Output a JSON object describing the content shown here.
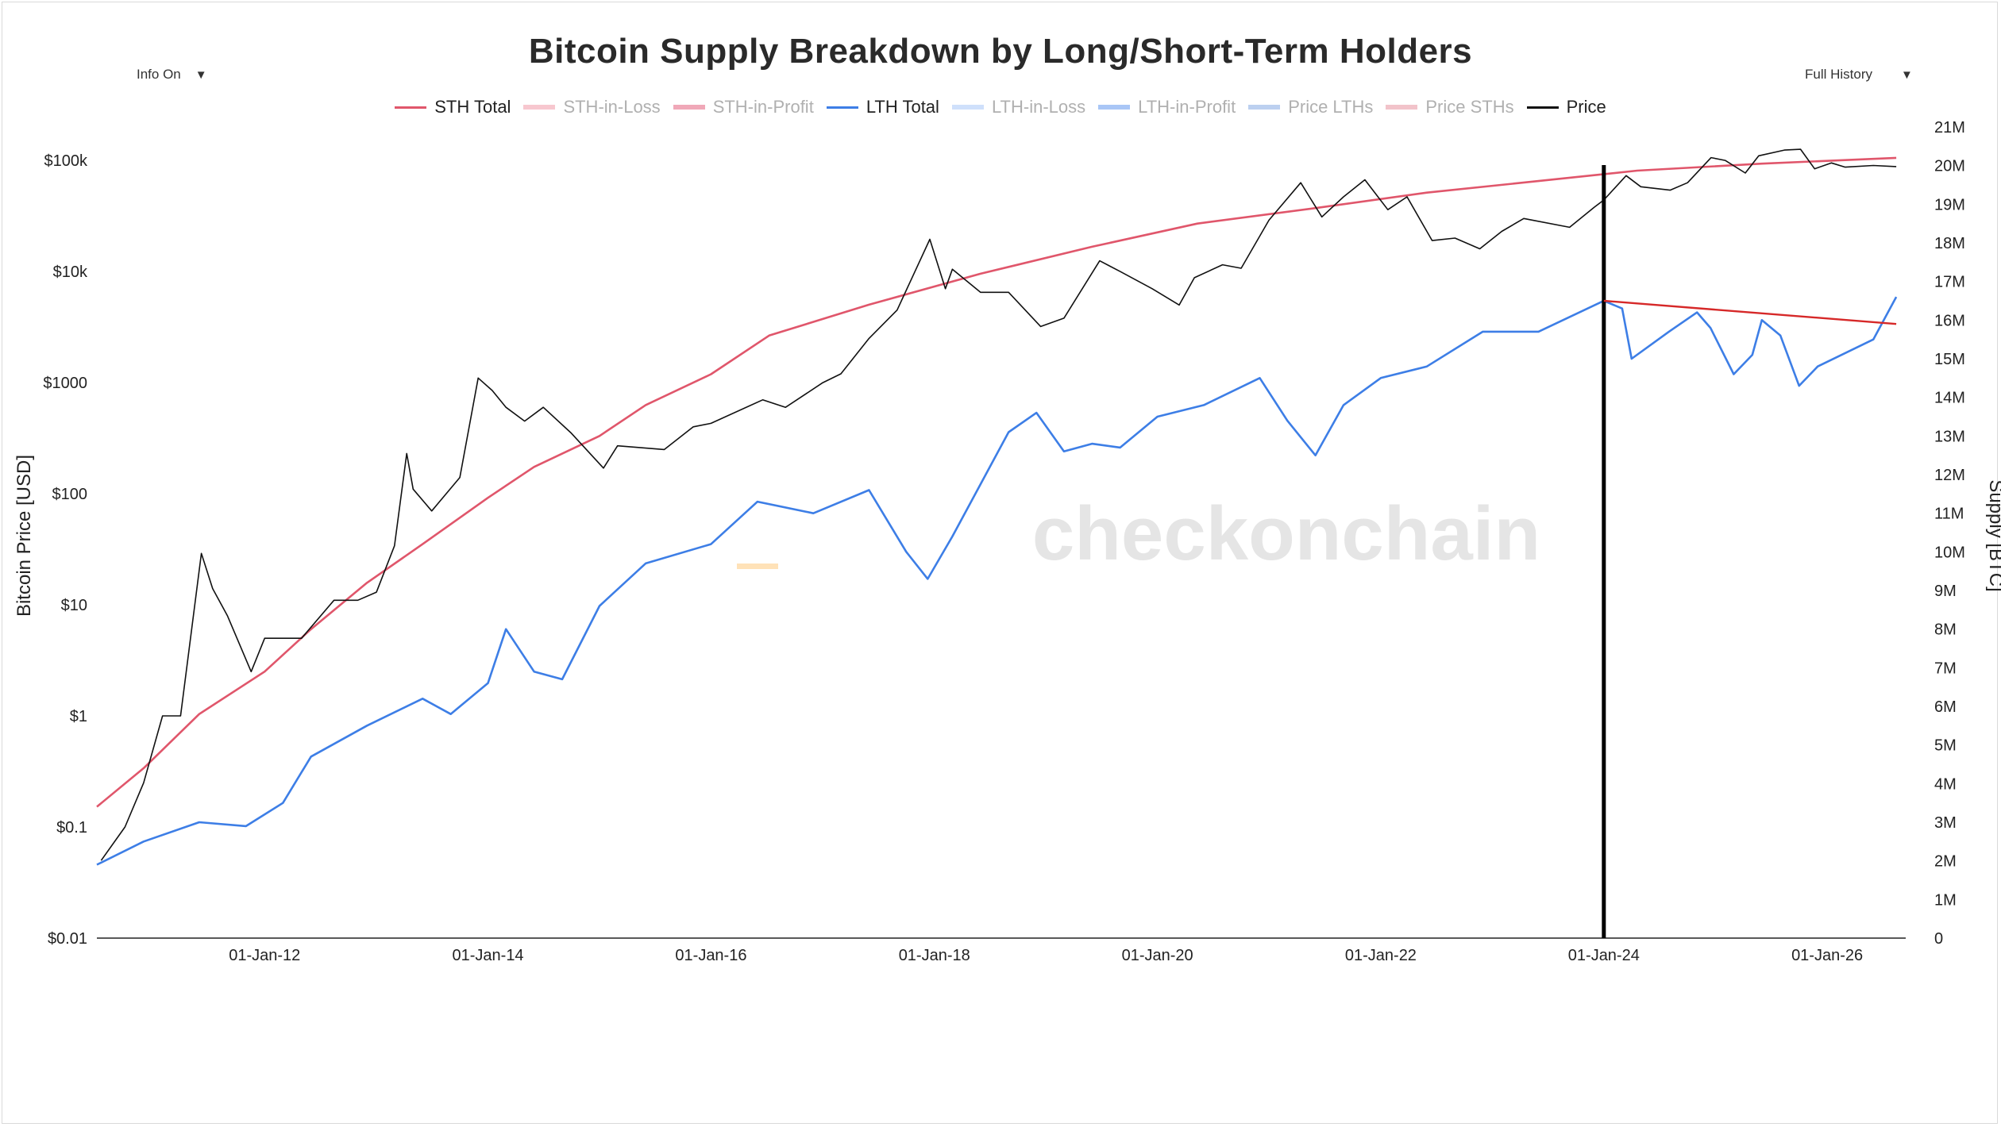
{
  "controls": {
    "info_toggle": "Info On",
    "history_select": "Full History"
  },
  "watermark": "checkonchain",
  "chart_data": {
    "type": "line",
    "title": "Bitcoin Supply Breakdown by Long/Short-Term Holders",
    "xlabel": "",
    "ylabel_left": "Bitcoin Price [USD]",
    "ylabel_right": "Supply [BTC]",
    "y_left_scale": "log",
    "y_left_range": [
      0.01,
      200000
    ],
    "y_right_range": [
      0,
      21000000
    ],
    "x_range": [
      "2010-07-01",
      "2026-09-15"
    ],
    "x_ticks": [
      "01-Jan-12",
      "01-Jan-14",
      "01-Jan-16",
      "01-Jan-18",
      "01-Jan-20",
      "01-Jan-22",
      "01-Jan-24",
      "01-Jan-26"
    ],
    "y_left_ticks": [
      "$0.01",
      "$0.1",
      "$1",
      "$10",
      "$100",
      "$1000",
      "$10k",
      "$100k"
    ],
    "y_right_ticks": [
      "0",
      "1M",
      "2M",
      "3M",
      "4M",
      "5M",
      "6M",
      "7M",
      "8M",
      "9M",
      "10M",
      "11M",
      "12M",
      "13M",
      "14M",
      "15M",
      "16M",
      "17M",
      "18M",
      "19M",
      "20M",
      "21M"
    ],
    "grid": false,
    "legend_position": "top-center",
    "legend": [
      {
        "name": "STH Total",
        "color": "#e0566b",
        "active": true
      },
      {
        "name": "STH-in-Loss",
        "color": "#f7c7cf",
        "active": false
      },
      {
        "name": "STH-in-Profit",
        "color": "#f0a8b8",
        "active": false
      },
      {
        "name": "LTH Total",
        "color": "#3d7ee6",
        "active": true
      },
      {
        "name": "LTH-in-Loss",
        "color": "#cfe0fb",
        "active": false
      },
      {
        "name": "LTH-in-Profit",
        "color": "#a9c6f6",
        "active": false
      },
      {
        "name": "Price LTHs",
        "color": "#bcd0f0",
        "active": false
      },
      {
        "name": "Price STHs",
        "color": "#f2c3ca",
        "active": false
      },
      {
        "name": "Price",
        "color": "#111111",
        "active": true
      }
    ],
    "annotations": {
      "vertical_marker_date": "2024-01-01",
      "trendline": {
        "from": [
          "2024-01-01",
          16500000
        ],
        "to": [
          "2026-08-15",
          15900000
        ],
        "color": "#d62828"
      }
    },
    "series": [
      {
        "name": "Price",
        "axis": "left",
        "color": "#111111",
        "points": [
          [
            "2010-07-15",
            0.05
          ],
          [
            "2010-10-01",
            0.1
          ],
          [
            "2010-12-01",
            0.25
          ],
          [
            "2011-02-01",
            1.0
          ],
          [
            "2011-04-01",
            1.0
          ],
          [
            "2011-06-08",
            29
          ],
          [
            "2011-07-15",
            14
          ],
          [
            "2011-09-01",
            8
          ],
          [
            "2011-11-18",
            2.5
          ],
          [
            "2012-01-01",
            5
          ],
          [
            "2012-05-01",
            5
          ],
          [
            "2012-08-15",
            11
          ],
          [
            "2012-11-01",
            11
          ],
          [
            "2013-01-01",
            13
          ],
          [
            "2013-03-01",
            34
          ],
          [
            "2013-04-10",
            230
          ],
          [
            "2013-05-01",
            110
          ],
          [
            "2013-07-01",
            70
          ],
          [
            "2013-10-01",
            140
          ],
          [
            "2013-11-30",
            1100
          ],
          [
            "2014-01-15",
            850
          ],
          [
            "2014-03-01",
            600
          ],
          [
            "2014-05-01",
            450
          ],
          [
            "2014-07-01",
            600
          ],
          [
            "2014-10-01",
            350
          ],
          [
            "2015-01-14",
            170
          ],
          [
            "2015-03-01",
            270
          ],
          [
            "2015-08-01",
            250
          ],
          [
            "2015-11-04",
            400
          ],
          [
            "2016-01-01",
            430
          ],
          [
            "2016-06-18",
            700
          ],
          [
            "2016-09-01",
            600
          ],
          [
            "2017-01-01",
            1000
          ],
          [
            "2017-03-01",
            1200
          ],
          [
            "2017-06-01",
            2500
          ],
          [
            "2017-09-01",
            4500
          ],
          [
            "2017-12-17",
            19500
          ],
          [
            "2018-02-06",
            7000
          ],
          [
            "2018-03-01",
            10500
          ],
          [
            "2018-06-01",
            6500
          ],
          [
            "2018-09-01",
            6500
          ],
          [
            "2018-12-15",
            3200
          ],
          [
            "2019-03-01",
            3800
          ],
          [
            "2019-06-26",
            12500
          ],
          [
            "2019-09-01",
            10000
          ],
          [
            "2019-12-15",
            7000
          ],
          [
            "2020-03-12",
            5000
          ],
          [
            "2020-05-01",
            8800
          ],
          [
            "2020-08-01",
            11500
          ],
          [
            "2020-10-01",
            10700
          ],
          [
            "2020-12-31",
            29000
          ],
          [
            "2021-04-14",
            63000
          ],
          [
            "2021-06-22",
            31000
          ],
          [
            "2021-09-01",
            47000
          ],
          [
            "2021-11-10",
            67000
          ],
          [
            "2022-01-24",
            36000
          ],
          [
            "2022-03-28",
            47000
          ],
          [
            "2022-06-18",
            19000
          ],
          [
            "2022-09-01",
            20000
          ],
          [
            "2022-11-21",
            16000
          ],
          [
            "2023-02-01",
            23000
          ],
          [
            "2023-04-14",
            30000
          ],
          [
            "2023-09-11",
            25000
          ],
          [
            "2023-12-01",
            38000
          ],
          [
            "2024-01-01",
            44000
          ],
          [
            "2024-03-14",
            73000
          ],
          [
            "2024-05-01",
            58000
          ],
          [
            "2024-08-05",
            54000
          ],
          [
            "2024-10-01",
            63000
          ],
          [
            "2024-12-17",
            106000
          ],
          [
            "2025-02-01",
            100000
          ],
          [
            "2025-04-08",
            77000
          ],
          [
            "2025-05-22",
            110000
          ],
          [
            "2025-08-14",
            124000
          ],
          [
            "2025-10-06",
            126000
          ],
          [
            "2025-11-21",
            84000
          ],
          [
            "2026-01-15",
            95000
          ],
          [
            "2026-03-01",
            87000
          ],
          [
            "2026-06-01",
            90000
          ],
          [
            "2026-08-15",
            88000
          ]
        ]
      },
      {
        "name": "STH Total",
        "axis": "right",
        "color": "#e0566b",
        "points": [
          [
            "2010-07-01",
            3400000
          ],
          [
            "2010-12-01",
            4400000
          ],
          [
            "2011-06-01",
            5800000
          ],
          [
            "2012-01-01",
            6900000
          ],
          [
            "2012-06-01",
            8000000
          ],
          [
            "2012-12-01",
            9200000
          ],
          [
            "2013-06-01",
            10200000
          ],
          [
            "2014-01-01",
            11400000
          ],
          [
            "2014-06-01",
            12200000
          ],
          [
            "2015-01-01",
            13000000
          ],
          [
            "2015-06-01",
            13800000
          ],
          [
            "2016-01-01",
            14600000
          ],
          [
            "2016-07-09",
            15600000
          ],
          [
            "2017-06-01",
            16400000
          ],
          [
            "2018-06-01",
            17200000
          ],
          [
            "2019-06-01",
            17900000
          ],
          [
            "2020-05-11",
            18500000
          ],
          [
            "2021-06-01",
            18900000
          ],
          [
            "2022-06-01",
            19300000
          ],
          [
            "2023-06-01",
            19600000
          ],
          [
            "2024-04-19",
            19870000
          ],
          [
            "2025-06-01",
            20050000
          ],
          [
            "2026-08-15",
            20200000
          ]
        ]
      },
      {
        "name": "LTH Total",
        "axis": "right",
        "color": "#3d7ee6",
        "points": [
          [
            "2010-07-01",
            1900000
          ],
          [
            "2010-12-01",
            2500000
          ],
          [
            "2011-06-01",
            3000000
          ],
          [
            "2011-11-01",
            2900000
          ],
          [
            "2012-03-01",
            3500000
          ],
          [
            "2012-06-01",
            4700000
          ],
          [
            "2012-12-01",
            5500000
          ],
          [
            "2013-06-01",
            6200000
          ],
          [
            "2013-09-01",
            5800000
          ],
          [
            "2014-01-01",
            6600000
          ],
          [
            "2014-03-01",
            8000000
          ],
          [
            "2014-06-01",
            6900000
          ],
          [
            "2014-09-01",
            6700000
          ],
          [
            "2015-01-01",
            8600000
          ],
          [
            "2015-06-01",
            9700000
          ],
          [
            "2016-01-01",
            10200000
          ],
          [
            "2016-06-01",
            11300000
          ],
          [
            "2016-12-01",
            11000000
          ],
          [
            "2017-06-01",
            11600000
          ],
          [
            "2017-10-01",
            10000000
          ],
          [
            "2017-12-10",
            9300000
          ],
          [
            "2018-03-01",
            10400000
          ],
          [
            "2018-09-01",
            13100000
          ],
          [
            "2018-12-01",
            13600000
          ],
          [
            "2019-03-01",
            12600000
          ],
          [
            "2019-06-01",
            12800000
          ],
          [
            "2019-09-01",
            12700000
          ],
          [
            "2020-01-01",
            13500000
          ],
          [
            "2020-06-01",
            13800000
          ],
          [
            "2020-12-01",
            14500000
          ],
          [
            "2021-03-01",
            13400000
          ],
          [
            "2021-06-01",
            12500000
          ],
          [
            "2021-09-01",
            13800000
          ],
          [
            "2022-01-01",
            14500000
          ],
          [
            "2022-06-01",
            14800000
          ],
          [
            "2022-12-01",
            15700000
          ],
          [
            "2023-06-01",
            15700000
          ],
          [
            "2024-01-01",
            16500000
          ],
          [
            "2024-03-01",
            16300000
          ],
          [
            "2024-04-01",
            15000000
          ],
          [
            "2024-08-01",
            15700000
          ],
          [
            "2024-11-01",
            16200000
          ],
          [
            "2024-12-15",
            15800000
          ],
          [
            "2025-03-01",
            14600000
          ],
          [
            "2025-05-01",
            15100000
          ],
          [
            "2025-06-01",
            16000000
          ],
          [
            "2025-08-01",
            15600000
          ],
          [
            "2025-10-01",
            14300000
          ],
          [
            "2025-12-01",
            14800000
          ],
          [
            "2026-06-01",
            15500000
          ],
          [
            "2026-08-15",
            16600000
          ]
        ]
      }
    ]
  }
}
